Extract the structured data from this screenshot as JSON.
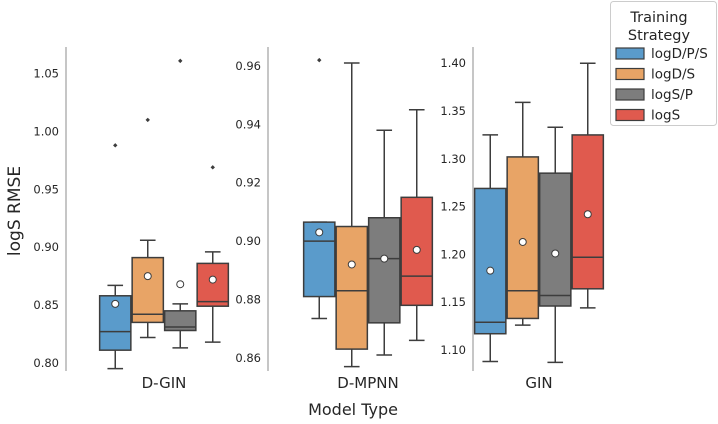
{
  "chart_data": {
    "type": "boxplot",
    "ylabel": "logS RMSE",
    "xlabel": "Model Type",
    "legend": {
      "title": "Training\nStrategy",
      "placement": "top-right",
      "entries": [
        "logD/P/S",
        "logD/S",
        "logS/P",
        "logS"
      ]
    },
    "colors": {
      "logD/P/S": "#5A9BCB",
      "logD/S": "#E8A466",
      "logS/P": "#7D7D7D",
      "logS": "#E05A4E",
      "box_edge": "#3d3d3d",
      "mean_marker_fill": "#ffffff"
    },
    "panels": [
      {
        "title": "D-GIN",
        "ylim": [
          0.793,
          1.073
        ],
        "yticks": [
          "0.80",
          "0.85",
          "0.90",
          "0.95",
          "1.00",
          "1.05"
        ],
        "ytick_values": [
          0.8,
          0.85,
          0.9,
          0.95,
          1.0,
          1.05
        ],
        "series": [
          {
            "name": "logD/P/S",
            "whisker_low": 0.795,
            "q1": 0.811,
            "median": 0.827,
            "q3": 0.858,
            "whisker_high": 0.867,
            "mean": 0.851,
            "outliers": [
              0.988
            ]
          },
          {
            "name": "logD/S",
            "whisker_low": 0.822,
            "q1": 0.835,
            "median": 0.842,
            "q3": 0.891,
            "whisker_high": 0.906,
            "mean": 0.875,
            "outliers": [
              1.01
            ]
          },
          {
            "name": "logS/P",
            "whisker_low": 0.813,
            "q1": 0.828,
            "median": 0.831,
            "q3": 0.845,
            "whisker_high": 0.851,
            "mean": 0.868,
            "outliers": [
              1.061
            ]
          },
          {
            "name": "logS",
            "whisker_low": 0.818,
            "q1": 0.849,
            "median": 0.853,
            "q3": 0.886,
            "whisker_high": 0.896,
            "mean": 0.872,
            "outliers": [
              0.969
            ]
          }
        ]
      },
      {
        "title": "D-MPNN",
        "ylim": [
          0.8555,
          0.9665
        ],
        "yticks": [
          "0.86",
          "0.88",
          "0.90",
          "0.92",
          "0.94",
          "0.96"
        ],
        "ytick_values": [
          0.86,
          0.88,
          0.9,
          0.92,
          0.94,
          0.96
        ],
        "series": [
          {
            "name": "logD/P/S",
            "whisker_low": 0.8735,
            "q1": 0.881,
            "median": 0.9,
            "q3": 0.9065,
            "whisker_high": 0.9065,
            "mean": 0.903,
            "outliers": [
              0.962
            ]
          },
          {
            "name": "logD/S",
            "whisker_low": 0.857,
            "q1": 0.863,
            "median": 0.883,
            "q3": 0.905,
            "whisker_high": 0.961,
            "mean": 0.892,
            "outliers": []
          },
          {
            "name": "logS/P",
            "whisker_low": 0.861,
            "q1": 0.872,
            "median": 0.894,
            "q3": 0.908,
            "whisker_high": 0.938,
            "mean": 0.894,
            "outliers": []
          },
          {
            "name": "logS",
            "whisker_low": 0.866,
            "q1": 0.878,
            "median": 0.888,
            "q3": 0.915,
            "whisker_high": 0.945,
            "mean": 0.897,
            "outliers": []
          }
        ]
      },
      {
        "title": "GIN",
        "ylim": [
          1.078,
          1.417
        ],
        "yticks": [
          "1.10",
          "1.15",
          "1.20",
          "1.25",
          "1.30",
          "1.35",
          "1.40"
        ],
        "ytick_values": [
          1.1,
          1.15,
          1.2,
          1.25,
          1.3,
          1.35,
          1.4
        ],
        "series": [
          {
            "name": "logD/P/S",
            "whisker_low": 1.088,
            "q1": 1.117,
            "median": 1.129,
            "q3": 1.269,
            "whisker_high": 1.325,
            "mean": 1.183,
            "outliers": []
          },
          {
            "name": "logD/S",
            "whisker_low": 1.126,
            "q1": 1.133,
            "median": 1.162,
            "q3": 1.302,
            "whisker_high": 1.359,
            "mean": 1.213,
            "outliers": []
          },
          {
            "name": "logS/P",
            "whisker_low": 1.087,
            "q1": 1.146,
            "median": 1.157,
            "q3": 1.285,
            "whisker_high": 1.333,
            "mean": 1.201,
            "outliers": []
          },
          {
            "name": "logS",
            "whisker_low": 1.144,
            "q1": 1.164,
            "median": 1.197,
            "q3": 1.325,
            "whisker_high": 1.4,
            "mean": 1.242,
            "outliers": []
          }
        ]
      }
    ]
  }
}
